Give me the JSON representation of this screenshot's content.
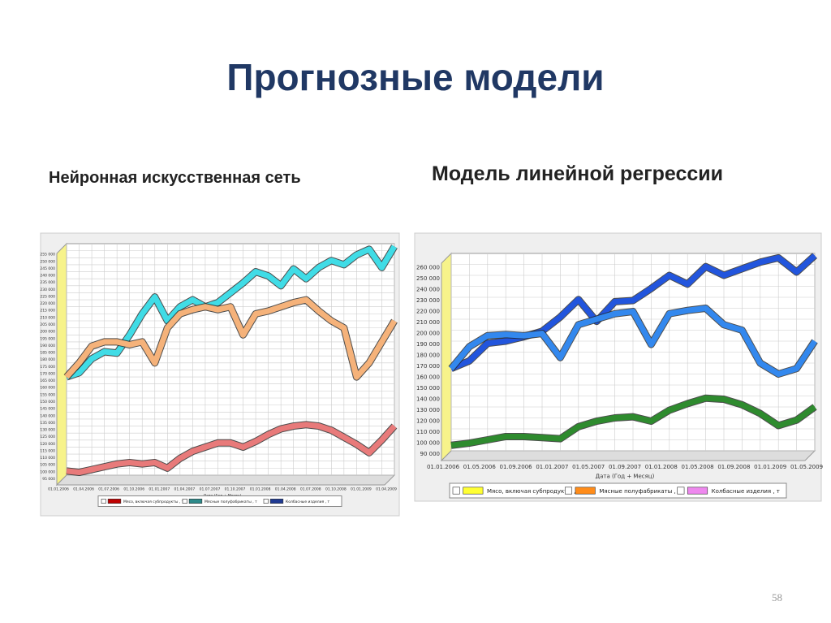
{
  "title": "Прогнозные модели",
  "left_caption": "Нейронная искусственная сеть",
  "right_caption": "Модель линейной регрессии",
  "page_number": "58",
  "chart_data": [
    {
      "type": "line",
      "grid": true,
      "xlabel": "Дата (Год + Месяц)",
      "categories": [
        "01.01.2006",
        null,
        "01.04.2006",
        null,
        "01.07.2006",
        null,
        "01.10.2006",
        null,
        "01.01.2007",
        null,
        "01.04.2007",
        null,
        "01.07.2007",
        null,
        "01.10.2007",
        null,
        "01.01.2008",
        null,
        "01.04.2008",
        null,
        "01.07.2008",
        null,
        "01.10.2008",
        null,
        "01.01.2009",
        null,
        "01.04.2009"
      ],
      "ylim": [
        95000,
        260000
      ],
      "yticks": [
        {
          "value": 95000,
          "label": "95 000"
        },
        {
          "value": 100000,
          "label": "100 000"
        },
        {
          "value": 105000,
          "label": "105 000"
        },
        {
          "value": 110000,
          "label": "110 000"
        },
        {
          "value": 115000,
          "label": "115 000"
        },
        {
          "value": 120000,
          "label": "120 000"
        },
        {
          "value": 125000,
          "label": "125 000"
        },
        {
          "value": 130000,
          "label": "130 000"
        },
        {
          "value": 135000,
          "label": "135 000"
        },
        {
          "value": 140000,
          "label": "140 000"
        },
        {
          "value": 145000,
          "label": "145 000"
        },
        {
          "value": 150000,
          "label": "150 000"
        },
        {
          "value": 155000,
          "label": "155 000"
        },
        {
          "value": 160000,
          "label": "160 000"
        },
        {
          "value": 165000,
          "label": "165 000"
        },
        {
          "value": 170000,
          "label": "170 000"
        },
        {
          "value": 175000,
          "label": "175 000"
        },
        {
          "value": 180000,
          "label": "180 000"
        },
        {
          "value": 185000,
          "label": "185 000"
        },
        {
          "value": 190000,
          "label": "190 000"
        },
        {
          "value": 195000,
          "label": "195 000"
        },
        {
          "value": 200000,
          "label": "200 000"
        },
        {
          "value": 205000,
          "label": "205 000"
        },
        {
          "value": 210000,
          "label": "210 000"
        },
        {
          "value": 215000,
          "label": "215 000"
        },
        {
          "value": 220000,
          "label": "220 000"
        },
        {
          "value": 225000,
          "label": "225 000"
        },
        {
          "value": 230000,
          "label": "230 000"
        },
        {
          "value": 235000,
          "label": "235 000"
        },
        {
          "value": 240000,
          "label": "240 000"
        },
        {
          "value": 245000,
          "label": "245 000"
        },
        {
          "value": 250000,
          "label": "250 000"
        },
        {
          "value": 255000,
          "label": "255 000"
        }
      ],
      "series": [
        {
          "name": "Мясо, включая субпродукты , т",
          "color": "#e87a7a",
          "legend_color": "#c00000",
          "values": [
            98000,
            97000,
            99000,
            101000,
            103000,
            104000,
            103000,
            104000,
            100000,
            107000,
            112000,
            115000,
            118000,
            118000,
            115000,
            119000,
            124000,
            128000,
            130000,
            131000,
            130000,
            127000,
            122000,
            117000,
            111000,
            120000,
            130000
          ]
        },
        {
          "name": "Мясные полуфабрикаты , т",
          "color": "#40dce6",
          "legend_color": "#2e8b8b",
          "values": [
            165000,
            168000,
            178000,
            183000,
            182000,
            195000,
            210000,
            222000,
            205000,
            215000,
            220000,
            215000,
            218000,
            225000,
            232000,
            240000,
            237000,
            230000,
            242000,
            235000,
            243000,
            248000,
            245000,
            252000,
            256000,
            243000,
            258000
          ]
        },
        {
          "name": "Колбасные изделия , т",
          "color": "#f5b27a",
          "legend_color": "#1f3a93",
          "values": [
            165000,
            175000,
            187000,
            190000,
            190000,
            188000,
            190000,
            175000,
            200000,
            210000,
            213000,
            215000,
            213000,
            215000,
            195000,
            210000,
            212000,
            215000,
            218000,
            220000,
            212000,
            205000,
            200000,
            165000,
            175000,
            190000,
            205000
          ]
        }
      ]
    },
    {
      "type": "line",
      "grid": true,
      "xlabel": "Дата (Год + Месяц)",
      "categories": [
        "01.01.2006",
        null,
        "01.05.2006",
        null,
        "01.09.2006",
        null,
        "01.01.2007",
        null,
        "01.05.2007",
        null,
        "01.09.2007",
        null,
        "01.01.2008",
        null,
        "01.05.2008",
        null,
        "01.09.2008",
        null,
        "01.01.2009",
        null,
        "01.05.2009"
      ],
      "ylim": [
        90000,
        270000
      ],
      "yticks": [
        {
          "value": 90000,
          "label": "90 000"
        },
        {
          "value": 100000,
          "label": "100 000"
        },
        {
          "value": 110000,
          "label": "110 000"
        },
        {
          "value": 120000,
          "label": "120 000"
        },
        {
          "value": 130000,
          "label": "130 000"
        },
        {
          "value": 140000,
          "label": "140 000"
        },
        {
          "value": 150000,
          "label": "150 000"
        },
        {
          "value": 160000,
          "label": "160 000"
        },
        {
          "value": 170000,
          "label": "170 000"
        },
        {
          "value": 180000,
          "label": "180 000"
        },
        {
          "value": 190000,
          "label": "190 000"
        },
        {
          "value": 200000,
          "label": "200 000"
        },
        {
          "value": 210000,
          "label": "210 000"
        },
        {
          "value": 220000,
          "label": "220 000"
        },
        {
          "value": 230000,
          "label": "230 000"
        },
        {
          "value": 240000,
          "label": "240 000"
        },
        {
          "value": 250000,
          "label": "250 000"
        },
        {
          "value": 260000,
          "label": "260 000"
        }
      ],
      "series": [
        {
          "name": "Мясо, включая субпродукты , т",
          "color": "#2255dd",
          "legend_color": "#ffff33",
          "values": [
            165000,
            172000,
            188000,
            190000,
            194000,
            199000,
            212000,
            228000,
            208000,
            226000,
            227000,
            238000,
            250000,
            242000,
            258000,
            250000,
            256000,
            262000,
            266000,
            253000,
            268000
          ]
        },
        {
          "name": "Мясные полуфабрикаты , т",
          "color": "#2e8b2e",
          "legend_color": "#ff8c1a",
          "values": [
            95000,
            97000,
            100000,
            103000,
            103000,
            102000,
            101000,
            112000,
            117000,
            120000,
            121000,
            117000,
            127000,
            133000,
            138000,
            137000,
            132000,
            124000,
            113000,
            118000,
            130000
          ]
        },
        {
          "name": "Колбасные изделия , т",
          "color": "#3388ee",
          "legend_color": "#ee88ee",
          "values": [
            165000,
            185000,
            195000,
            196000,
            195000,
            197000,
            175000,
            205000,
            210000,
            215000,
            217000,
            187000,
            215000,
            218000,
            220000,
            205000,
            200000,
            170000,
            160000,
            165000,
            190000
          ]
        }
      ]
    }
  ]
}
